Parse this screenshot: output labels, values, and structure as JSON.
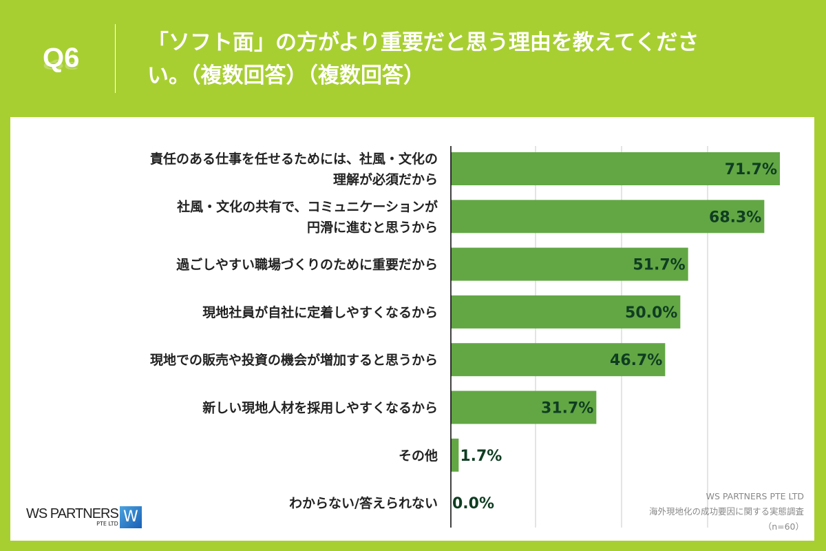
{
  "header": {
    "q_label": "Q6",
    "title": "「ソフト面」の方がより重要だと思う理由を教えてください。（複数回答）（複数回答）"
  },
  "logo": {
    "text": "WS PARTNERS",
    "sub": "PTE LTD"
  },
  "footer": {
    "company": "WS PARTNERS PTE LTD",
    "survey": "海外現地化の成功要因に関する実態調査",
    "n": "（n=60）"
  },
  "colors": {
    "background": "#a8cf32",
    "bar": "#62a744",
    "value_text": "#0f3d22"
  },
  "chart_data": {
    "type": "bar",
    "orientation": "horizontal",
    "categories": [
      [
        "責任のある仕事を任せるためには、社風・文化の",
        "理解が必須だから"
      ],
      [
        "社風・文化の共有で、コミュニケーションが",
        "円滑に進むと思うから"
      ],
      [
        "過ごしやすい職場づくりのために重要だから"
      ],
      [
        "現地社員が自社に定着しやすくなるから"
      ],
      [
        "現地での販売や投資の機会が増加すると思うから"
      ],
      [
        "新しい現地人材を採用しやすくなるから"
      ],
      [
        "その他"
      ],
      [
        "わからない/答えられない"
      ]
    ],
    "values": [
      71.7,
      68.3,
      51.7,
      50.0,
      46.7,
      31.7,
      1.7,
      0.0
    ],
    "data_labels": [
      "71.7%",
      "68.3%",
      "51.7%",
      "50.0%",
      "46.7%",
      "31.7%",
      "1.7%",
      "0.0%"
    ],
    "grid": true
  }
}
